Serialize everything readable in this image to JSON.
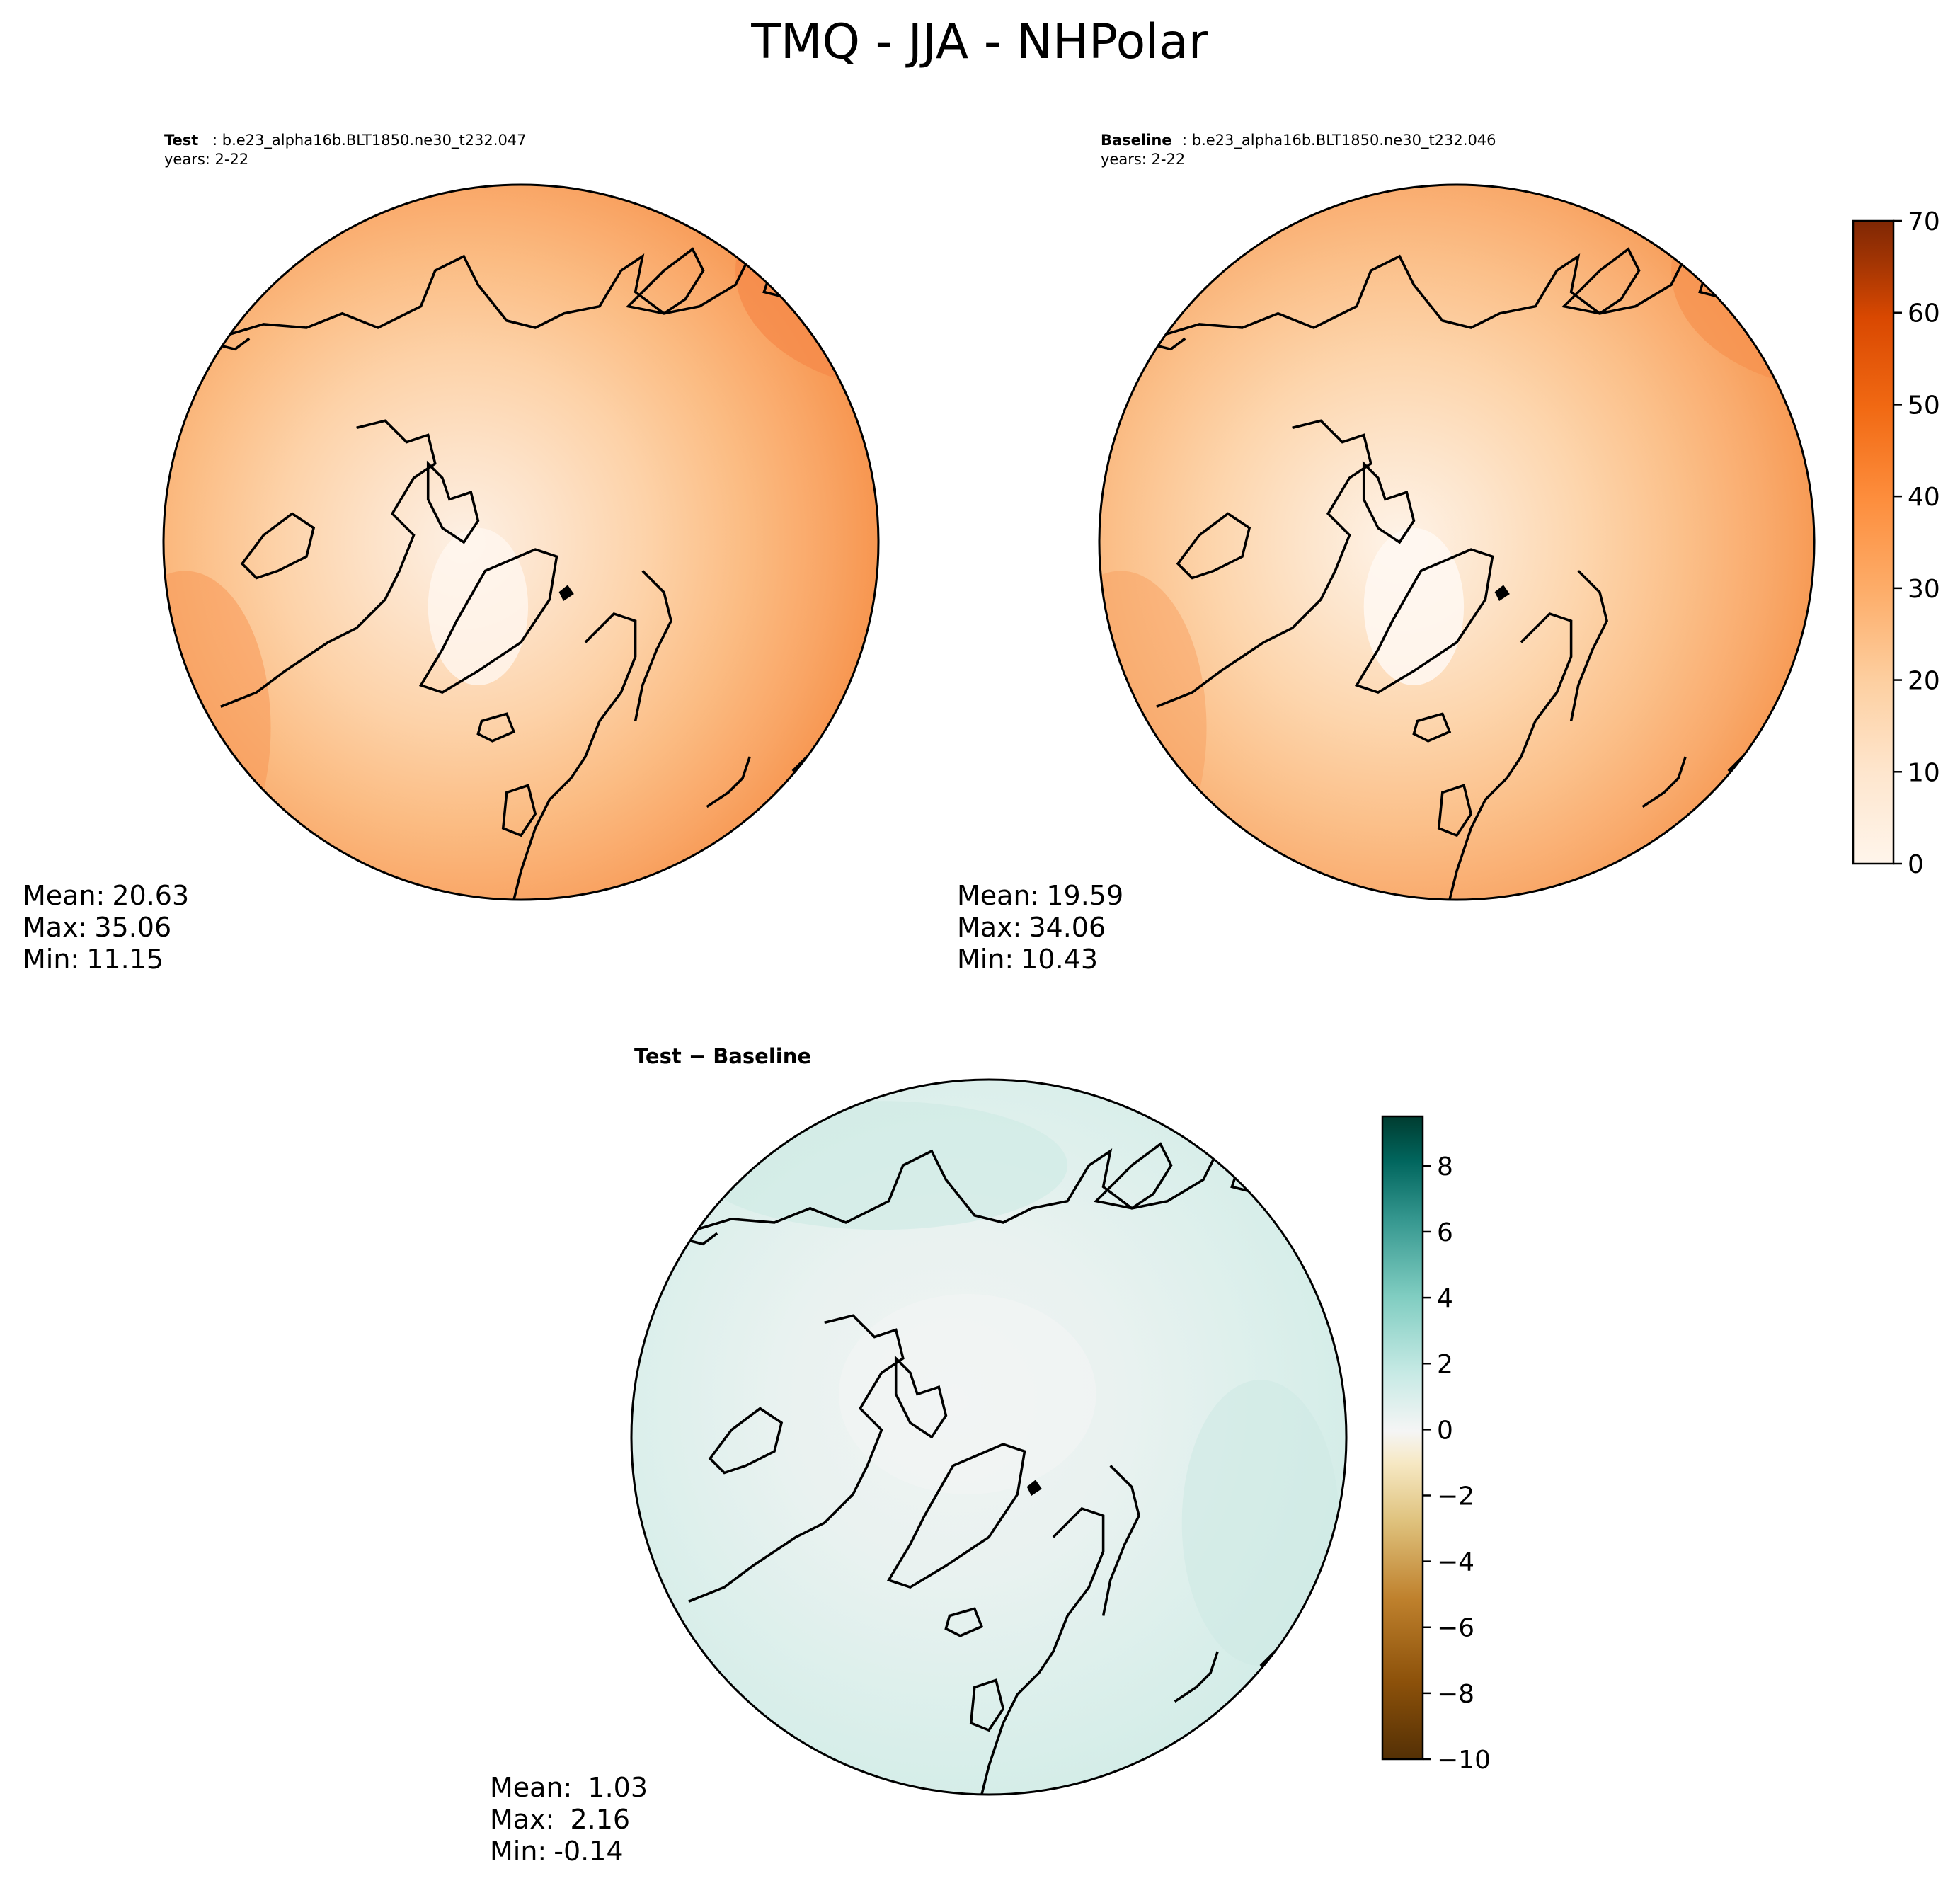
{
  "figure": {
    "title": "TMQ - JJA - NHPolar"
  },
  "panels": [
    {
      "label": "Test",
      "case": ": b.e23_alpha16b.BLT1850.ne30_t232.047",
      "years": "years: 2-22",
      "stats": {
        "mean_label": "Mean:",
        "mean": "20.63",
        "max_label": "Max:",
        "max": "35.06",
        "min_label": "Min:",
        "min": "11.15"
      }
    },
    {
      "label": "Baseline",
      "case": ": b.e23_alpha16b.BLT1850.ne30_t232.046",
      "years": "years: 2-22",
      "stats": {
        "mean_label": "Mean:",
        "mean": "19.59",
        "max_label": "Max:",
        "max": "34.06",
        "min_label": "Min:",
        "min": "10.43"
      }
    },
    {
      "label": "Test − Baseline",
      "stats": {
        "mean_label": "Mean:",
        "mean": " 1.03",
        "max_label": "Max:",
        "max": " 2.16",
        "min_label": "Min:",
        "min": "-0.14"
      }
    }
  ],
  "chart_data": [
    {
      "type": "heatmap",
      "title": "Test",
      "projection": "North Polar Stereographic",
      "variable": "TMQ",
      "season": "JJA",
      "value_range": [
        11.15,
        35.06
      ]
    },
    {
      "type": "heatmap",
      "title": "Baseline",
      "projection": "North Polar Stereographic",
      "variable": "TMQ",
      "season": "JJA",
      "value_range": [
        10.43,
        34.06
      ]
    },
    {
      "type": "heatmap",
      "title": "Test − Baseline",
      "projection": "North Polar Stereographic",
      "variable": "TMQ difference",
      "season": "JJA",
      "value_range": [
        -0.14,
        2.16
      ]
    },
    {
      "type": "colorbar",
      "name": "main",
      "range": [
        0,
        70
      ],
      "levels": 20,
      "ticks": [
        "0",
        "10",
        "20",
        "30",
        "40",
        "50",
        "60",
        "70"
      ],
      "colormap": [
        "#fff5eb",
        "#fee6ce",
        "#fdd0a2",
        "#fdae6b",
        "#fd8d3c",
        "#f16913",
        "#d94801",
        "#a63603",
        "#7f2704"
      ]
    },
    {
      "type": "colorbar",
      "name": "diff",
      "range": [
        -10,
        9.5
      ],
      "levels": 20,
      "ticks": [
        "−10",
        "−8",
        "−6",
        "−4",
        "−2",
        "0",
        "2",
        "4",
        "6",
        "8"
      ],
      "colormap": [
        "#543005",
        "#8c510a",
        "#bf812d",
        "#dfc27d",
        "#f6e8c3",
        "#f5f5f5",
        "#c7eae5",
        "#80cdc1",
        "#35978f",
        "#01665e",
        "#003c30"
      ]
    }
  ]
}
